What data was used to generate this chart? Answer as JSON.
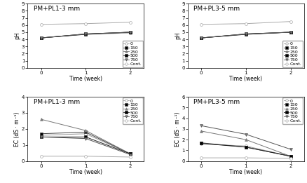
{
  "weeks": [
    0,
    1,
    2
  ],
  "titles": [
    "PM+PL1-3 mm",
    "PM+PL3-5 mm",
    "PM+PL1-3 mm",
    "PM+PL3-5 mm"
  ],
  "ylabel_ph": "pH",
  "ylabel_ec": "EC (dS · m⁻¹)",
  "xlabel": "Time (week)",
  "ph_pl1_data": {
    "0": [
      4.2,
      4.7,
      4.9
    ],
    "150": [
      4.2,
      4.7,
      5.0
    ],
    "250": [
      4.2,
      4.75,
      5.0
    ],
    "500": [
      4.2,
      4.75,
      5.0
    ],
    "750": [
      4.2,
      4.75,
      5.0
    ],
    "Cont.": [
      6.1,
      6.2,
      6.4
    ]
  },
  "ph_pl3_data": {
    "0": [
      4.2,
      4.7,
      5.0
    ],
    "150": [
      4.2,
      4.7,
      5.0
    ],
    "250": [
      4.2,
      4.75,
      5.0
    ],
    "500": [
      4.2,
      4.75,
      5.0
    ],
    "750": [
      4.2,
      4.75,
      5.0
    ],
    "Cont.": [
      6.1,
      6.2,
      6.5
    ]
  },
  "ec_pl1_data": {
    "0": [
      1.6,
      1.7,
      0.45
    ],
    "150": [
      1.7,
      1.8,
      0.45
    ],
    "250": [
      2.6,
      1.9,
      0.45
    ],
    "500": [
      1.5,
      1.5,
      0.45
    ],
    "750": [
      1.5,
      1.4,
      0.4
    ],
    "Cont.": [
      0.3,
      0.3,
      0.25
    ]
  },
  "ec_pl3_data": {
    "0": [
      1.6,
      1.4,
      0.45
    ],
    "150": [
      1.7,
      1.3,
      0.45
    ],
    "250": [
      2.8,
      2.0,
      0.45
    ],
    "500": [
      1.65,
      1.3,
      0.45
    ],
    "750": [
      3.3,
      2.5,
      1.1
    ],
    "Cont.": [
      0.3,
      0.3,
      0.25
    ]
  },
  "legend_labels": [
    "0",
    "150",
    "250",
    "500",
    "750",
    "Cont."
  ],
  "markers": [
    "o",
    "s",
    "^",
    "s",
    "v",
    "o"
  ],
  "line_colors": [
    "#999999",
    "#444444",
    "#777777",
    "#222222",
    "#555555",
    "#aaaaaa"
  ],
  "mfcs": [
    "white",
    "black",
    "gray",
    "black",
    "gray",
    "white"
  ],
  "ph_ylim": [
    0,
    9
  ],
  "ph_yticks": [
    0,
    1,
    2,
    3,
    4,
    5,
    6,
    7,
    8,
    9
  ],
  "ec1_ylim": [
    0,
    4
  ],
  "ec1_yticks": [
    0,
    1,
    2,
    3,
    4
  ],
  "ec2_ylim": [
    0,
    6
  ],
  "ec2_yticks": [
    0,
    1,
    2,
    3,
    4,
    5,
    6
  ],
  "title_fontsize": 6.5,
  "label_fontsize": 5.5,
  "tick_fontsize": 5,
  "legend_fontsize": 4.5
}
